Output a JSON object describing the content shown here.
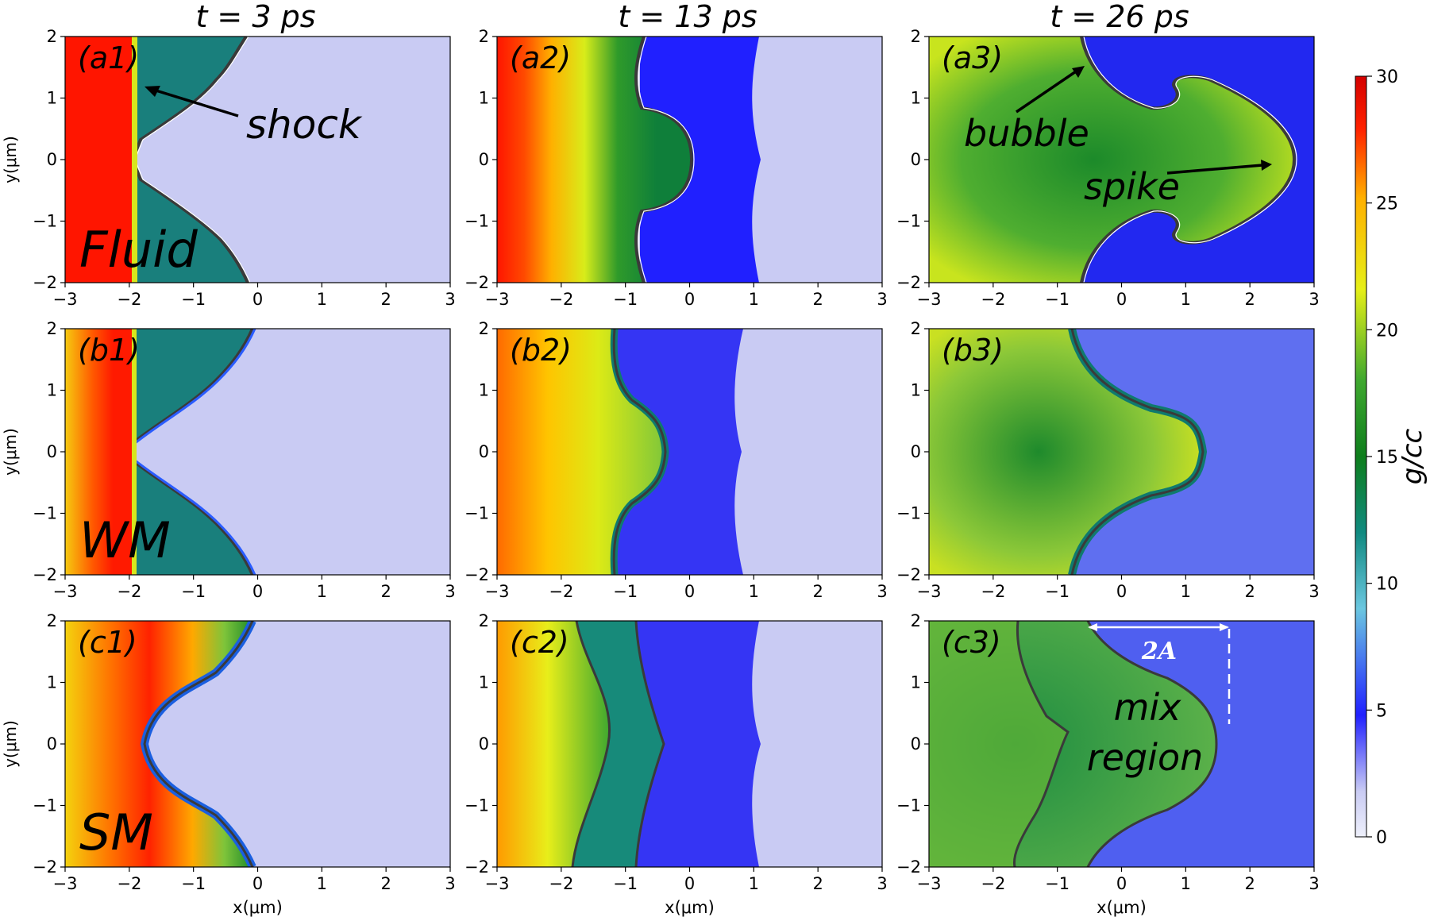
{
  "chart_data": {
    "type": "heatmap",
    "layout": "3x3 grid of density maps",
    "column_titles": [
      "t = 3 ps",
      "t = 13 ps",
      "t = 26 ps"
    ],
    "row_labels": [
      "Fluid",
      "WM",
      "SM"
    ],
    "xlabel": "x(μm)",
    "ylabel": "y(μm)",
    "xlim": [
      -3,
      3
    ],
    "ylim": [
      -2,
      2
    ],
    "xticks": [
      "−3",
      "−2",
      "−1",
      "0",
      "1",
      "2",
      "3"
    ],
    "yticks": [
      "2",
      "1",
      "0",
      "−1",
      "−2"
    ],
    "colorbar": {
      "label": "g/cc",
      "range": [
        0,
        30
      ],
      "ticks": [
        "30",
        "25",
        "20",
        "15",
        "10",
        "5",
        "0"
      ],
      "colormap": "jet-like",
      "colors": [
        "#eef0fb",
        "#c9cbf3",
        "#2020ff",
        "#6bc7e0",
        "#108a80",
        "#0e7e1c",
        "#3fa82f",
        "#e6ef18",
        "#ffb000",
        "#ff2200",
        "#d40000"
      ]
    },
    "panels": [
      {
        "id": "a1",
        "label": "(a1)",
        "annotations": [
          "shock"
        ]
      },
      {
        "id": "a2",
        "label": "(a2)",
        "annotations": []
      },
      {
        "id": "a3",
        "label": "(a3)",
        "annotations": [
          "bubble",
          "spike"
        ]
      },
      {
        "id": "b1",
        "label": "(b1)",
        "annotations": []
      },
      {
        "id": "b2",
        "label": "(b2)",
        "annotations": []
      },
      {
        "id": "b3",
        "label": "(b3)",
        "annotations": []
      },
      {
        "id": "c1",
        "label": "(c1)",
        "annotations": []
      },
      {
        "id": "c2",
        "label": "(c2)",
        "annotations": []
      },
      {
        "id": "c3",
        "label": "(c3)",
        "annotations": [
          "2A",
          "mix",
          "region"
        ]
      }
    ],
    "region_densities_gcc": {
      "shocked_heavy_left": 28,
      "compressed_heavy_t13": 20,
      "mixed_core_t26": 16,
      "interface_layer": 12,
      "compressed_light": 4,
      "unshocked_light": 1
    },
    "interface_x_um": {
      "t3": {
        "spike_tip": -1.9,
        "bubble_tip": 0.0
      },
      "t13": {
        "spike_tip": 0.5,
        "bubble_tip": -1.0
      },
      "t26": {
        "spike_tip": 2.7,
        "bubble_tip": -0.6
      }
    }
  }
}
